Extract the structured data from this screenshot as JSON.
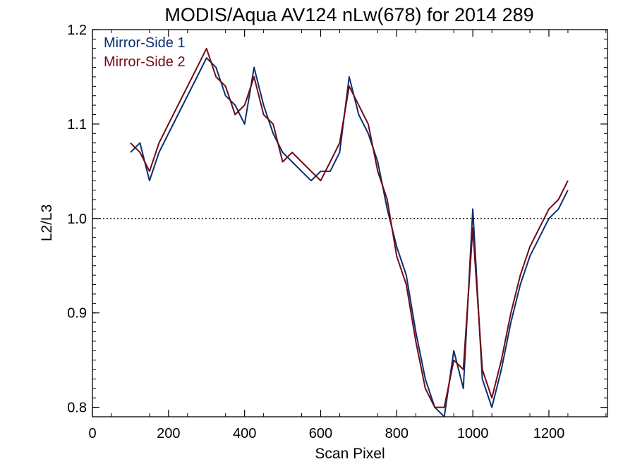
{
  "chart_data": {
    "type": "line",
    "title": "MODIS/Aqua AV124 nLw(678) for 2014 289",
    "xlabel": "Scan Pixel",
    "ylabel": "L2/L3",
    "xlim": [
      0,
      1354
    ],
    "ylim": [
      0.79,
      1.2
    ],
    "x_ticks": [
      0,
      200,
      400,
      600,
      800,
      1000,
      1200
    ],
    "x_tick_labels": [
      "0",
      "200",
      "400",
      "600",
      "800",
      "1000",
      "1200"
    ],
    "y_ticks": [
      0.8,
      0.9,
      1.0,
      1.1,
      1.2
    ],
    "y_tick_labels": [
      "0.8",
      "0.9",
      "1.0",
      "1.1",
      "1.2"
    ],
    "reference_line": 1.0,
    "legend_placement": "top-left",
    "legend": [
      {
        "label": "Mirror-Side 1",
        "color": "#0a2f6e"
      },
      {
        "label": "Mirror-Side 2",
        "color": "#720a14"
      }
    ],
    "x": [
      100,
      125,
      150,
      175,
      200,
      225,
      250,
      275,
      300,
      325,
      350,
      375,
      400,
      425,
      450,
      475,
      500,
      525,
      550,
      575,
      600,
      625,
      650,
      675,
      700,
      725,
      750,
      775,
      800,
      825,
      850,
      875,
      900,
      925,
      950,
      975,
      1000,
      1025,
      1050,
      1075,
      1100,
      1125,
      1150,
      1175,
      1200,
      1225,
      1250
    ],
    "series": [
      {
        "name": "Mirror-Side 1",
        "color": "#0a2f6e",
        "values": [
          1.07,
          1.08,
          1.04,
          1.07,
          1.09,
          1.11,
          1.13,
          1.15,
          1.17,
          1.16,
          1.13,
          1.12,
          1.1,
          1.16,
          1.12,
          1.09,
          1.07,
          1.06,
          1.05,
          1.04,
          1.05,
          1.05,
          1.07,
          1.15,
          1.11,
          1.09,
          1.06,
          1.01,
          0.97,
          0.94,
          0.88,
          0.83,
          0.8,
          0.79,
          0.86,
          0.82,
          1.01,
          0.83,
          0.8,
          0.84,
          0.89,
          0.93,
          0.96,
          0.98,
          1.0,
          1.01,
          1.03
        ]
      },
      {
        "name": "Mirror-Side 2",
        "color": "#720a14",
        "values": [
          1.08,
          1.07,
          1.05,
          1.08,
          1.1,
          1.12,
          1.14,
          1.16,
          1.18,
          1.15,
          1.14,
          1.11,
          1.12,
          1.15,
          1.11,
          1.1,
          1.06,
          1.07,
          1.06,
          1.05,
          1.04,
          1.06,
          1.08,
          1.14,
          1.12,
          1.1,
          1.05,
          1.02,
          0.96,
          0.93,
          0.87,
          0.82,
          0.8,
          0.8,
          0.85,
          0.84,
          0.99,
          0.84,
          0.81,
          0.85,
          0.9,
          0.94,
          0.97,
          0.99,
          1.01,
          1.02,
          1.04
        ]
      }
    ]
  }
}
